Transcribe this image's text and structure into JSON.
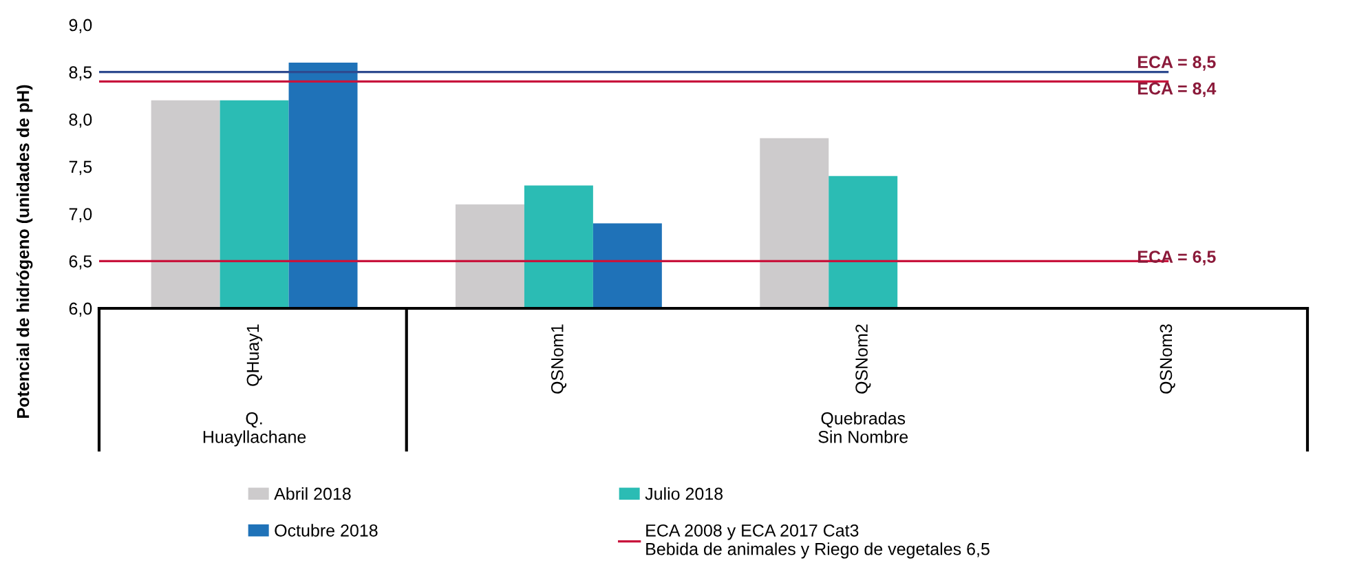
{
  "chart_data": {
    "type": "bar",
    "ylabel": "Potencial de hidrógeno (unidades de pH)",
    "categories": [
      "QHuay1",
      "QSNom1",
      "QSNom2",
      "QSNom3"
    ],
    "series": [
      {
        "name": "Abril 2018",
        "color": "#cdcbcc",
        "values": [
          8.2,
          7.1,
          7.8,
          null
        ]
      },
      {
        "name": "Julio 2018",
        "color": "#2bbcb4",
        "values": [
          8.2,
          7.3,
          7.4,
          null
        ]
      },
      {
        "name": "Octubre 2018",
        "color": "#1f72b8",
        "values": [
          8.6,
          6.9,
          null,
          null
        ]
      }
    ],
    "ylim": [
      6.0,
      9.0
    ],
    "yticks": [
      {
        "value": 6.0,
        "label": "6,0"
      },
      {
        "value": 6.5,
        "label": "6,5"
      },
      {
        "value": 7.0,
        "label": "7,0"
      },
      {
        "value": 7.5,
        "label": "7,5"
      },
      {
        "value": 8.0,
        "label": "8,0"
      },
      {
        "value": 8.5,
        "label": "8,5"
      },
      {
        "value": 9.0,
        "label": "9,0"
      }
    ],
    "ref_lines": [
      {
        "axis": "y",
        "value": 8.5,
        "label": "ECA = 8,5",
        "color": "#2e4a8f"
      },
      {
        "axis": "y",
        "value": 8.4,
        "label": "ECA = 8,4",
        "color": "#c8143c"
      },
      {
        "axis": "y",
        "value": 6.5,
        "label": "ECA = 6,5",
        "color": "#c8143c"
      }
    ],
    "annotations": [
      "Q.\nHuayllachane",
      "Quebradas\nSin Nombre",
      "ECA 2008 y ECA 2017 Cat3\nBebida de animales y Riego de vegetales 6,5"
    ],
    "grid": false,
    "legend": "bottom"
  }
}
